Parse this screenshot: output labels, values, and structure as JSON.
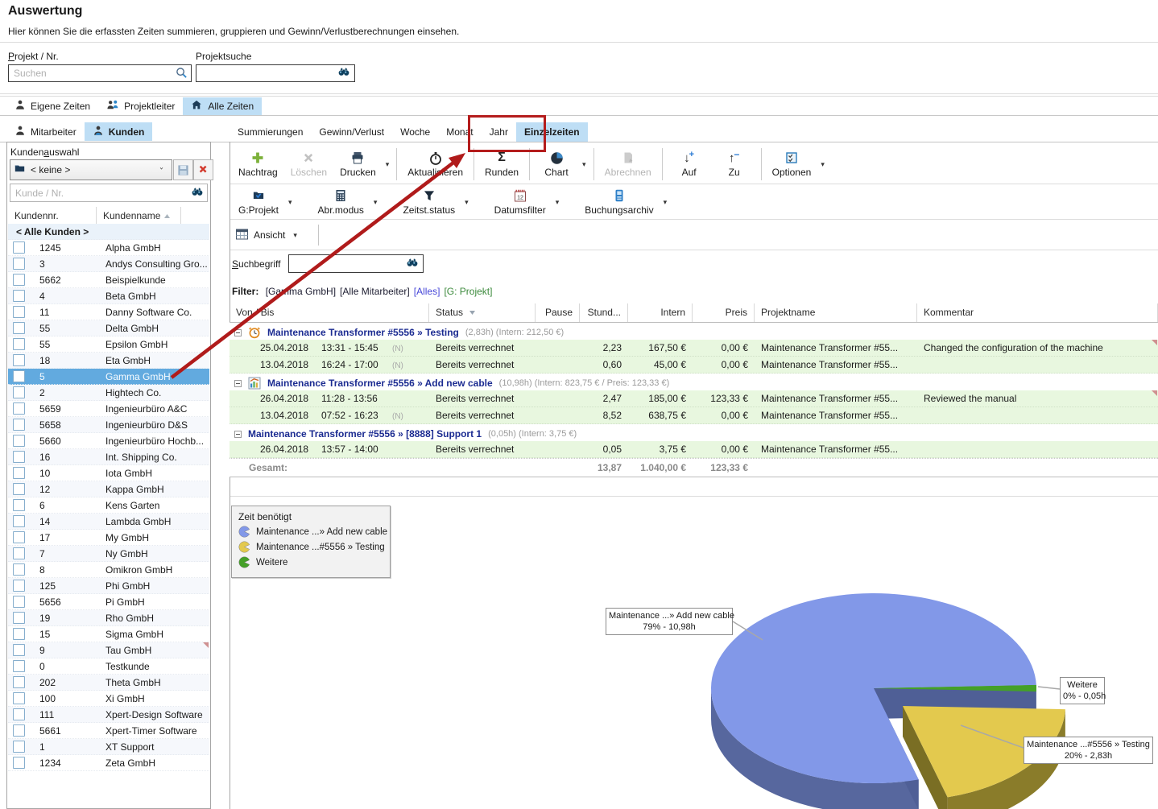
{
  "page": {
    "title": "Auswertung",
    "subtitle": "Hier können Sie die erfassten Zeiten summieren, gruppieren und Gewinn/Verlustberechnungen einsehen."
  },
  "search": {
    "project_label": "Projekt / Nr.",
    "project_mnemonic": "P",
    "project_placeholder": "Suchen",
    "projectsearch_label": "Projektsuche"
  },
  "view_tabs": [
    {
      "label": "Eigene Zeiten",
      "icon": "person",
      "active": false
    },
    {
      "label": "Projektleiter",
      "icon": "people",
      "active": false
    },
    {
      "label": "Alle Zeiten",
      "icon": "house",
      "active": true
    }
  ],
  "left_tabs": [
    {
      "label": "Mitarbeiter",
      "icon": "person",
      "active": false
    },
    {
      "label": "Kunden",
      "icon": "person-blue",
      "active": true
    }
  ],
  "main_tabs": [
    {
      "label": "Summierungen",
      "active": false
    },
    {
      "label": "Gewinn/Verlust",
      "active": false
    },
    {
      "label": "Woche",
      "active": false
    },
    {
      "label": "Monat",
      "active": false
    },
    {
      "label": "Jahr",
      "active": false
    },
    {
      "label": "Einzelzeiten",
      "active": true,
      "highlighted": true
    }
  ],
  "sidebar": {
    "title": "Kundenauswahl",
    "title_mnemonic": "a",
    "dropdown_value": "< keine >",
    "search_placeholder": "Kunde / Nr.",
    "columns": [
      "Kundennr.",
      "Kundenname"
    ],
    "all_row": "< Alle Kunden >",
    "customers": [
      {
        "nr": "1245",
        "name": "Alpha GmbH"
      },
      {
        "nr": "3",
        "name": "Andys Consulting Gro..."
      },
      {
        "nr": "5662",
        "name": "Beispielkunde"
      },
      {
        "nr": "4",
        "name": "Beta GmbH"
      },
      {
        "nr": "11",
        "name": "Danny Software Co."
      },
      {
        "nr": "55",
        "name": "Delta GmbH"
      },
      {
        "nr": "55",
        "name": "Epsilon GmbH"
      },
      {
        "nr": "18",
        "name": "Eta GmbH"
      },
      {
        "nr": "5",
        "name": "Gamma GmbH",
        "selected": true
      },
      {
        "nr": "2",
        "name": "Hightech Co."
      },
      {
        "nr": "5659",
        "name": "Ingenieurbüro A&C"
      },
      {
        "nr": "5658",
        "name": "Ingenieurbüro D&S"
      },
      {
        "nr": "5660",
        "name": "Ingenieurbüro Hochb..."
      },
      {
        "nr": "16",
        "name": "Int. Shipping Co."
      },
      {
        "nr": "10",
        "name": "Iota GmbH"
      },
      {
        "nr": "12",
        "name": "Kappa GmbH"
      },
      {
        "nr": "6",
        "name": "Kens Garten"
      },
      {
        "nr": "14",
        "name": "Lambda GmbH"
      },
      {
        "nr": "17",
        "name": "My GmbH"
      },
      {
        "nr": "7",
        "name": "Ny GmbH"
      },
      {
        "nr": "8",
        "name": "Omikron GmbH"
      },
      {
        "nr": "125",
        "name": "Phi GmbH"
      },
      {
        "nr": "5656",
        "name": "Pi GmbH"
      },
      {
        "nr": "19",
        "name": "Rho GmbH"
      },
      {
        "nr": "15",
        "name": "Sigma GmbH"
      },
      {
        "nr": "9",
        "name": "Tau GmbH",
        "marker": true
      },
      {
        "nr": "0",
        "name": "Testkunde"
      },
      {
        "nr": "202",
        "name": "Theta GmbH"
      },
      {
        "nr": "100",
        "name": "Xi GmbH"
      },
      {
        "nr": "111",
        "name": "Xpert-Design Software"
      },
      {
        "nr": "5661",
        "name": "Xpert-Timer Software"
      },
      {
        "nr": "1",
        "name": "XT Support"
      },
      {
        "nr": "1234",
        "name": "Zeta GmbH"
      }
    ]
  },
  "toolbar": {
    "buttons": [
      {
        "label": "Nachtrag",
        "icon": "plus"
      },
      {
        "label": "Löschen",
        "icon": "grey-x",
        "disabled": true
      },
      {
        "label": "Drucken",
        "icon": "printer",
        "dropdown": true,
        "group_end": true
      },
      {
        "label": "Aktualisieren",
        "icon": "stopwatch",
        "group_end": true
      },
      {
        "label": "Runden",
        "icon": "sigma",
        "group_end": true
      },
      {
        "label": "Chart",
        "icon": "pie",
        "dropdown": true,
        "group_end": true
      },
      {
        "label": "Abrechnen",
        "icon": "bill",
        "disabled": true,
        "group_end": true
      },
      {
        "label": "Auf",
        "icon": "arrow-down-plus"
      },
      {
        "label": "Zu",
        "icon": "arrow-up-minus",
        "group_end": true
      },
      {
        "label": "Optionen",
        "icon": "options",
        "dropdown": true
      }
    ],
    "filters": [
      {
        "label": "G:Projekt",
        "icon": "folder-check"
      },
      {
        "label": "Abr.modus",
        "icon": "calculator"
      },
      {
        "label": "Zeitst.status",
        "icon": "funnel"
      },
      {
        "label": "Datumsfilter",
        "icon": "calendar"
      },
      {
        "label": "Buchungsarchiv",
        "icon": "archive"
      }
    ],
    "ansicht_label": "Ansicht",
    "suchbegriff_label": "Suchbegriff",
    "suchbegriff_mnemonic": "S"
  },
  "filter": {
    "label": "Filter:",
    "parts": [
      {
        "text": "[Gamma GmbH]",
        "color": "#1c1c30"
      },
      {
        "text": "[Alle Mitarbeiter]",
        "color": "#1c1c30"
      },
      {
        "text": "[Alles]",
        "color": "#4646d8"
      },
      {
        "text": "[G: Projekt]",
        "color": "#3c8a3c"
      }
    ]
  },
  "table": {
    "columns": [
      "Von / Bis",
      "Status",
      "Pause",
      "Stund...",
      "Intern",
      "Preis",
      "Projektname",
      "Kommentar"
    ],
    "groups": [
      {
        "title": "Maintenance Transformer #5556 » Testing",
        "note": "(2,83h) (Intern: 212,50 €)",
        "icon": "clock",
        "rows": [
          {
            "date": "25.04.2018",
            "time": "13:31 - 15:45",
            "n": "(N)",
            "status": "Bereits verrechnet",
            "pause": "",
            "stunden": "2,23",
            "intern": "167,50 €",
            "preis": "0,00 €",
            "projekt": "Maintenance Transformer #55...",
            "kommentar": "Changed the configuration of the machine",
            "marker": true
          },
          {
            "date": "13.04.2018",
            "time": "16:24 - 17:00",
            "n": "(N)",
            "status": "Bereits verrechnet",
            "pause": "",
            "stunden": "0,60",
            "intern": "45,00 €",
            "preis": "0,00 €",
            "projekt": "Maintenance Transformer #55...",
            "kommentar": ""
          }
        ]
      },
      {
        "title": "Maintenance Transformer #5556 » Add new cable",
        "note": "(10,98h) (Intern: 823,75 € / Preis: 123,33 €)",
        "icon": "chart",
        "rows": [
          {
            "date": "26.04.2018",
            "time": "11:28 - 13:56",
            "n": "",
            "status": "Bereits verrechnet",
            "pause": "",
            "stunden": "2,47",
            "intern": "185,00 €",
            "preis": "123,33 €",
            "projekt": "Maintenance Transformer #55...",
            "kommentar": "Reviewed the manual",
            "marker": true
          },
          {
            "date": "13.04.2018",
            "time": "07:52 - 16:23",
            "n": "(N)",
            "status": "Bereits verrechnet",
            "pause": "",
            "stunden": "8,52",
            "intern": "638,75 €",
            "preis": "0,00 €",
            "projekt": "Maintenance Transformer #55...",
            "kommentar": ""
          }
        ]
      },
      {
        "title": "Maintenance Transformer #5556 » [8888] Support 1",
        "note": "(0,05h) (Intern: 3,75 €)",
        "icon": "",
        "rows": [
          {
            "date": "26.04.2018",
            "time": "13:57 - 14:00",
            "n": "",
            "status": "Bereits verrechnet",
            "pause": "",
            "stunden": "0,05",
            "intern": "3,75 €",
            "preis": "0,00 €",
            "projekt": "Maintenance Transformer #55...",
            "kommentar": ""
          }
        ]
      }
    ],
    "total": {
      "label": "Gesamt:",
      "stunden": "13,87",
      "intern": "1.040,00 €",
      "preis": "123,33 €"
    }
  },
  "chart_data": {
    "type": "pie",
    "title": "Zeit benötigt",
    "legend_position": "top-left",
    "slices": [
      {
        "label": "Maintenance ...» Add new cable",
        "percent": 79,
        "hours": "10,98h",
        "value": 10.98,
        "color": "#8298e8",
        "side_color": "#57679e"
      },
      {
        "label": "Maintenance ...#5556 » Testing",
        "percent": 20,
        "hours": "2,83h",
        "value": 2.83,
        "color": "#e3c94e",
        "side_color": "#8a7c2a",
        "exploded": true
      },
      {
        "label": "Weitere",
        "percent": 0,
        "hours": "0,05h",
        "value": 0.05,
        "color": "#44a028",
        "side_color": "#2d6e1c"
      }
    ]
  },
  "annotations": {
    "red_box_color": "#b41c1c",
    "arrow_color": "#b01b1b"
  }
}
